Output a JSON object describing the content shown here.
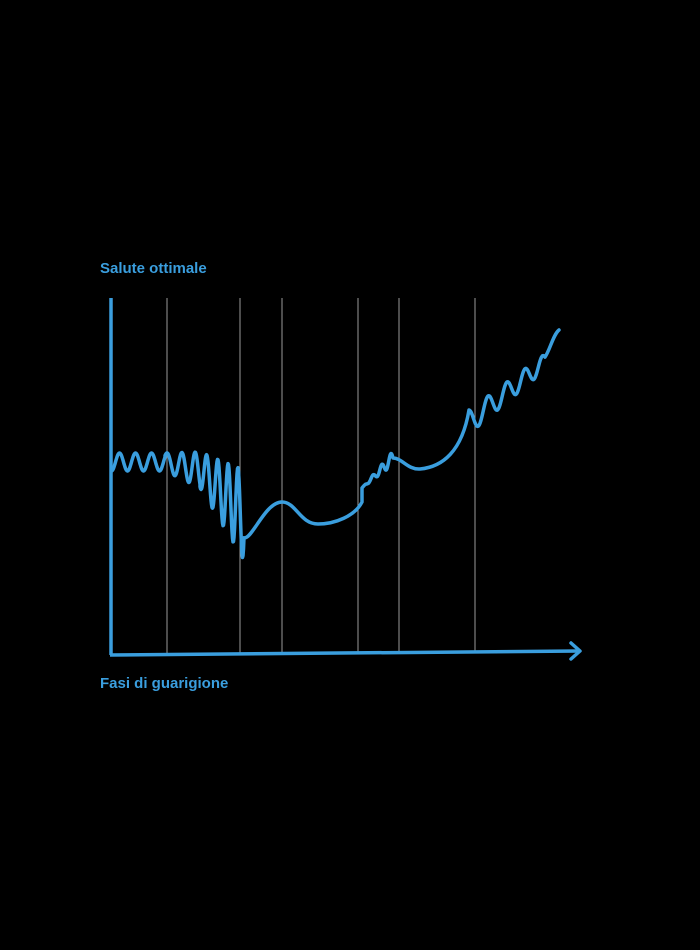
{
  "y_axis_label": "Salute ottimale",
  "x_axis_label": "Fasi di guarigione"
}
